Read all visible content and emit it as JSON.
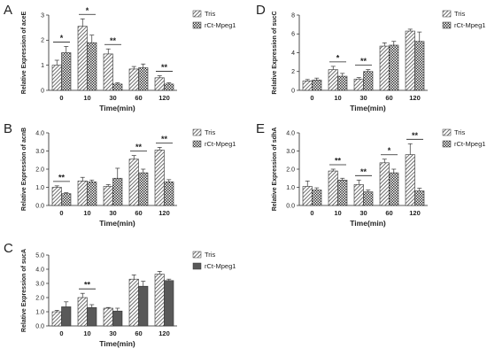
{
  "figure": {
    "panels": [
      "A",
      "B",
      "C",
      "D",
      "E"
    ]
  },
  "chart_data": [
    {
      "panel": "A",
      "type": "bar",
      "categories": [
        "0",
        "10",
        "30",
        "60",
        "120"
      ],
      "xlabel": "Time(min)",
      "ylabel": "Relative Expression of aceE",
      "ylim": [
        0,
        3
      ],
      "yticks": [
        "0",
        "1",
        "2",
        "3"
      ],
      "legend_position": "right",
      "series": [
        {
          "name": "Tris",
          "values": [
            1.0,
            2.55,
            1.45,
            0.85,
            0.5
          ],
          "errors": [
            0.2,
            0.3,
            0.2,
            0.1,
            0.08
          ],
          "pattern": "hatch",
          "color": "#999999"
        },
        {
          "name": "rCt-Mpeg1",
          "values": [
            1.5,
            1.9,
            0.25,
            0.9,
            0.25
          ],
          "errors": [
            0.25,
            0.3,
            0.05,
            0.15,
            0.05
          ],
          "pattern": "check",
          "color": "#bbbbbb"
        }
      ],
      "significance": [
        {
          "category": "0",
          "label": "*"
        },
        {
          "category": "10",
          "label": "*"
        },
        {
          "category": "30",
          "label": "**"
        },
        {
          "category": "120",
          "label": "**"
        }
      ]
    },
    {
      "panel": "B",
      "type": "bar",
      "categories": [
        "0",
        "10",
        "30",
        "60",
        "120"
      ],
      "xlabel": "Time(min)",
      "ylabel": "Relative Expression of acnB",
      "ylim": [
        0,
        4
      ],
      "yticks": [
        "0.0",
        "1.0",
        "2.0",
        "3.0",
        "4.0"
      ],
      "legend_position": "right",
      "series": [
        {
          "name": "Tris",
          "values": [
            1.0,
            1.35,
            1.05,
            2.55,
            3.05
          ],
          "errors": [
            0.08,
            0.2,
            0.1,
            0.2,
            0.15
          ],
          "pattern": "hatch",
          "color": "#999999"
        },
        {
          "name": "rCt-Mpeg1",
          "values": [
            0.65,
            1.3,
            1.5,
            1.8,
            1.3
          ],
          "errors": [
            0.05,
            0.1,
            0.55,
            0.2,
            0.12
          ],
          "pattern": "check",
          "color": "#bbbbbb"
        }
      ],
      "significance": [
        {
          "category": "0",
          "label": "**"
        },
        {
          "category": "60",
          "label": "**"
        },
        {
          "category": "120",
          "label": "**"
        }
      ]
    },
    {
      "panel": "C",
      "type": "bar",
      "categories": [
        "0",
        "10",
        "30",
        "60",
        "120"
      ],
      "xlabel": "Time(min)",
      "ylabel": "Relative Expression of sucA",
      "ylim": [
        0,
        5
      ],
      "yticks": [
        "0.0",
        "1.0",
        "2.0",
        "3.0",
        "4.0",
        "5.0"
      ],
      "legend_position": "right",
      "series": [
        {
          "name": "Tris",
          "values": [
            1.0,
            2.0,
            1.25,
            3.3,
            3.65
          ],
          "errors": [
            0.1,
            0.3,
            0.05,
            0.3,
            0.2
          ],
          "pattern": "hatch",
          "color": "#999999"
        },
        {
          "name": "rCt-Mpeg1",
          "values": [
            1.35,
            1.3,
            1.05,
            2.8,
            3.2
          ],
          "errors": [
            0.35,
            0.2,
            0.2,
            0.35,
            0.1
          ],
          "pattern": "solid",
          "color": "#595959"
        }
      ],
      "significance": [
        {
          "category": "10",
          "label": "**"
        }
      ]
    },
    {
      "panel": "D",
      "type": "bar",
      "categories": [
        "0",
        "10",
        "30",
        "60",
        "120"
      ],
      "xlabel": "Time(min)",
      "ylabel": "Relative Expression of sucC",
      "ylim": [
        0,
        8
      ],
      "yticks": [
        "0",
        "2",
        "4",
        "6",
        "8"
      ],
      "legend_position": "right",
      "series": [
        {
          "name": "Tris",
          "values": [
            1.0,
            2.2,
            1.2,
            4.7,
            6.3
          ],
          "errors": [
            0.15,
            0.35,
            0.15,
            0.35,
            0.2
          ],
          "pattern": "hatch",
          "color": "#999999"
        },
        {
          "name": "rCt-Mpeg1",
          "values": [
            1.1,
            1.5,
            2.0,
            4.8,
            5.2
          ],
          "errors": [
            0.2,
            0.3,
            0.2,
            0.4,
            1.0
          ],
          "pattern": "check",
          "color": "#bbbbbb"
        }
      ],
      "significance": [
        {
          "category": "10",
          "label": "*"
        },
        {
          "category": "30",
          "label": "**"
        }
      ]
    },
    {
      "panel": "E",
      "type": "bar",
      "categories": [
        "0",
        "10",
        "30",
        "60",
        "120"
      ],
      "xlabel": "Time(min)",
      "ylabel": "Relative Expression of sdhA",
      "ylim": [
        0,
        4
      ],
      "yticks": [
        "0.0",
        "1.0",
        "2.0",
        "3.0",
        "4.0"
      ],
      "legend_position": "right",
      "series": [
        {
          "name": "Tris",
          "values": [
            1.05,
            1.9,
            1.15,
            2.35,
            2.8
          ],
          "errors": [
            0.3,
            0.1,
            0.25,
            0.2,
            0.6
          ],
          "pattern": "hatch",
          "color": "#999999"
        },
        {
          "name": "rCt-Mpeg1",
          "values": [
            0.85,
            1.4,
            0.75,
            1.8,
            0.8
          ],
          "errors": [
            0.12,
            0.1,
            0.1,
            0.2,
            0.15
          ],
          "pattern": "check",
          "color": "#bbbbbb"
        }
      ],
      "significance": [
        {
          "category": "10",
          "label": "**"
        },
        {
          "category": "30",
          "label": "**"
        },
        {
          "category": "60",
          "label": "*"
        },
        {
          "category": "120",
          "label": "**"
        }
      ]
    }
  ]
}
